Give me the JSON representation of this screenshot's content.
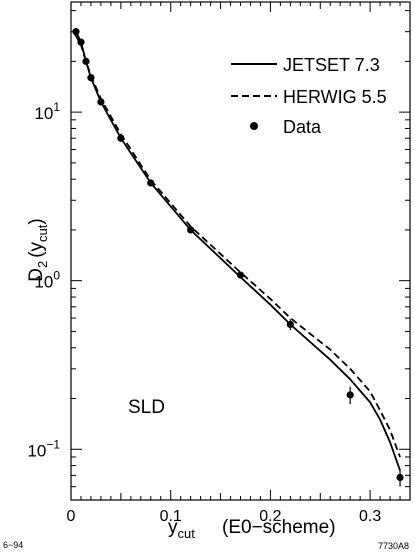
{
  "chart_data": {
    "type": "line",
    "title": "",
    "experiment_label": "SLD",
    "xlabel_main": "y",
    "xlabel_sub": "cut",
    "xlabel_scheme": "(E0−scheme)",
    "ylabel_prefix": "D",
    "ylabel_sub2": "2",
    "ylabel_y": "(y",
    "ylabel_cut": "cut",
    "ylabel_close": ")",
    "footer_left": "6−94",
    "footer_right": "7730A8",
    "xlim": [
      0,
      0.34
    ],
    "ylim": [
      0.05,
      45
    ],
    "yscale": "log",
    "x_ticks": [
      {
        "value": 0,
        "label": "0"
      },
      {
        "value": 0.1,
        "label": "0.1"
      },
      {
        "value": 0.2,
        "label": "0.2"
      },
      {
        "value": 0.3,
        "label": "0.3"
      }
    ],
    "y_ticks": [
      {
        "value": 10,
        "base": "10",
        "exp": "1"
      },
      {
        "value": 1,
        "base": "10",
        "exp": "0"
      },
      {
        "value": 0.1,
        "base": "10",
        "exp": "−1"
      }
    ],
    "legend": {
      "position": "top-right",
      "entries": [
        {
          "label": "JETSET 7.3",
          "style": "solid-line"
        },
        {
          "label": "HERWIG 5.5",
          "style": "dashed-line"
        },
        {
          "label": "Data",
          "style": "point"
        }
      ]
    },
    "series": [
      {
        "name": "JETSET 7.3",
        "style": "solid",
        "x": [
          0.004,
          0.01,
          0.015,
          0.02,
          0.03,
          0.05,
          0.08,
          0.12,
          0.17,
          0.2,
          0.22,
          0.26,
          0.28,
          0.3,
          0.31,
          0.32,
          0.33
        ],
        "y": [
          31,
          26,
          20,
          16,
          11.5,
          7.0,
          3.8,
          2.0,
          1.05,
          0.72,
          0.55,
          0.34,
          0.26,
          0.19,
          0.15,
          0.11,
          0.075
        ]
      },
      {
        "name": "HERWIG 5.5",
        "style": "dashed",
        "x": [
          0.004,
          0.01,
          0.015,
          0.02,
          0.03,
          0.05,
          0.08,
          0.12,
          0.17,
          0.2,
          0.22,
          0.26,
          0.28,
          0.3,
          0.31,
          0.32,
          0.33
        ],
        "y": [
          29,
          25,
          20,
          16.5,
          12,
          7.4,
          3.95,
          2.1,
          1.12,
          0.78,
          0.6,
          0.39,
          0.3,
          0.22,
          0.17,
          0.13,
          0.09
        ]
      },
      {
        "name": "Data",
        "style": "points",
        "x": [
          0.005,
          0.01,
          0.015,
          0.02,
          0.03,
          0.05,
          0.08,
          0.12,
          0.17,
          0.22,
          0.28,
          0.33
        ],
        "y": [
          30,
          26,
          20,
          16,
          11.5,
          7.0,
          3.8,
          2.0,
          1.08,
          0.55,
          0.21,
          0.068
        ],
        "yerr": [
          1.5,
          1.2,
          0.9,
          0.8,
          0.5,
          0.3,
          0.16,
          0.08,
          0.05,
          0.04,
          0.025,
          0.008
        ]
      }
    ]
  }
}
